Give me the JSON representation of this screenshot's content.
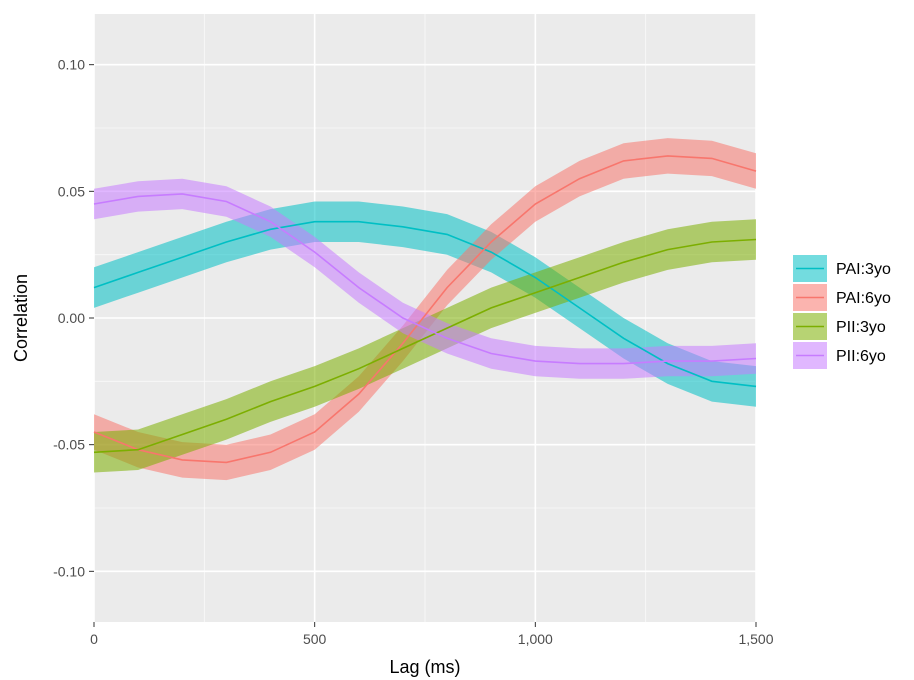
{
  "chart_data": {
    "type": "line",
    "title": "",
    "xlabel": "Lag (ms)",
    "ylabel": "Correlation",
    "xlim": [
      0,
      1500
    ],
    "ylim": [
      -0.12,
      0.12
    ],
    "x_ticks": [
      0,
      500,
      1000,
      1500
    ],
    "x_tick_labels": [
      "0",
      "500",
      "1,000",
      "1,500"
    ],
    "y_ticks": [
      -0.1,
      -0.05,
      0.0,
      0.05,
      0.1
    ],
    "y_tick_labels": [
      "-0.10",
      "-0.05",
      "0.00",
      "0.05",
      "0.10"
    ],
    "grid": true,
    "legend_position": "right",
    "x": [
      0,
      100,
      200,
      300,
      400,
      500,
      600,
      700,
      800,
      900,
      1000,
      1100,
      1200,
      1300,
      1400,
      1500
    ],
    "series": [
      {
        "name": "PAI:3yo",
        "color": "#00BFC4",
        "values": [
          0.012,
          0.018,
          0.024,
          0.03,
          0.035,
          0.038,
          0.038,
          0.036,
          0.033,
          0.026,
          0.016,
          0.004,
          -0.008,
          -0.018,
          -0.025,
          -0.027
        ],
        "band_halfwidth": 0.008
      },
      {
        "name": "PAI:6yo",
        "color": "#F8766D",
        "values": [
          -0.045,
          -0.052,
          -0.056,
          -0.057,
          -0.053,
          -0.045,
          -0.03,
          -0.01,
          0.012,
          0.03,
          0.045,
          0.055,
          0.062,
          0.064,
          0.063,
          0.058
        ],
        "band_halfwidth": 0.007
      },
      {
        "name": "PII:3yo",
        "color": "#7CAE00",
        "values": [
          -0.053,
          -0.052,
          -0.046,
          -0.04,
          -0.033,
          -0.027,
          -0.02,
          -0.012,
          -0.004,
          0.004,
          0.01,
          0.016,
          0.022,
          0.027,
          0.03,
          0.031
        ],
        "band_halfwidth": 0.008
      },
      {
        "name": "PII:6yo",
        "color": "#C77CFF",
        "values": [
          0.045,
          0.048,
          0.049,
          0.046,
          0.038,
          0.026,
          0.012,
          0.0,
          -0.008,
          -0.014,
          -0.017,
          -0.018,
          -0.018,
          -0.017,
          -0.017,
          -0.016
        ],
        "band_halfwidth": 0.006
      }
    ]
  }
}
